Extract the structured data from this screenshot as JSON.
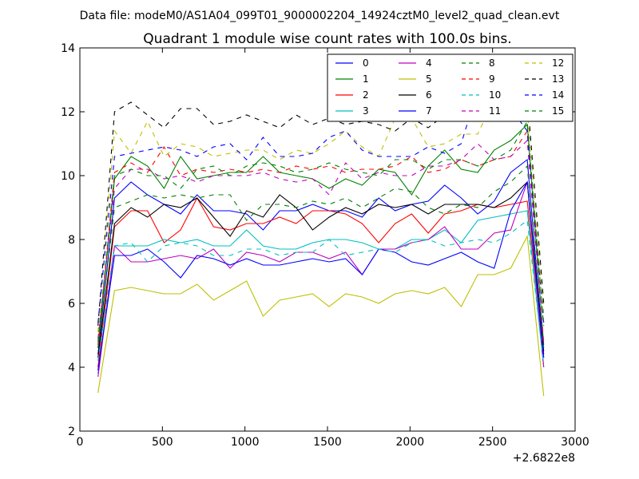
{
  "figure": {
    "suptitle": "Data file: modeM0/AS1A04_099T01_9000002204_14924cztM0_level2_quad_clean.evt"
  },
  "chart_data": {
    "type": "line",
    "title": "Quadrant 1 module wise count rates with 100.0s bins.",
    "xlabel": "",
    "ylabel": "",
    "x_offset_label": "+2.6822e8",
    "xlim": [
      0,
      3000
    ],
    "ylim": [
      2,
      14
    ],
    "xticks": [
      0,
      500,
      1000,
      1500,
      2000,
      2500,
      3000
    ],
    "yticks": [
      2,
      4,
      6,
      8,
      10,
      12,
      14
    ],
    "grid": false,
    "legend_placement": "top-right",
    "legend_columns": 4,
    "x": [
      110,
      210,
      310,
      410,
      510,
      610,
      710,
      810,
      910,
      1010,
      1110,
      1210,
      1310,
      1410,
      1510,
      1610,
      1710,
      1810,
      1910,
      2010,
      2110,
      2210,
      2310,
      2410,
      2510,
      2610,
      2710,
      2810
    ],
    "series": [
      {
        "name": "0",
        "color": "#0000ff",
        "dash": "solid",
        "values": [
          4.4,
          9.3,
          9.8,
          9.4,
          9.1,
          8.8,
          9.4,
          8.9,
          8.9,
          8.8,
          8.3,
          8.9,
          8.9,
          9.1,
          8.9,
          8.9,
          8.7,
          9.3,
          8.9,
          9.1,
          9.2,
          9.7,
          9.3,
          8.8,
          9.2,
          10.1,
          10.5,
          4.4
        ]
      },
      {
        "name": "1",
        "color": "#008000",
        "dash": "solid",
        "values": [
          4.6,
          9.9,
          10.6,
          10.3,
          9.6,
          10.6,
          9.9,
          10.0,
          10.1,
          10.1,
          10.6,
          10.1,
          10.0,
          9.9,
          9.6,
          9.9,
          9.7,
          10.2,
          10.1,
          9.4,
          10.3,
          10.8,
          10.2,
          10.1,
          10.8,
          11.1,
          11.6,
          4.7
        ]
      },
      {
        "name": "2",
        "color": "#ff0000",
        "dash": "solid",
        "values": [
          4.0,
          8.4,
          8.9,
          8.9,
          7.9,
          8.3,
          9.3,
          8.4,
          8.3,
          8.5,
          8.5,
          8.7,
          8.5,
          8.9,
          8.9,
          8.8,
          8.5,
          7.9,
          8.5,
          8.8,
          8.2,
          8.8,
          8.9,
          9.1,
          9.0,
          9.1,
          9.2,
          4.3
        ]
      },
      {
        "name": "3",
        "color": "#00bfbf",
        "dash": "solid",
        "values": [
          3.8,
          7.8,
          7.8,
          7.8,
          8.0,
          7.9,
          8.0,
          7.8,
          7.8,
          8.3,
          7.8,
          7.7,
          7.7,
          7.9,
          8.0,
          8.0,
          7.9,
          7.7,
          7.7,
          8.0,
          8.0,
          8.3,
          7.9,
          8.6,
          8.7,
          8.8,
          8.9,
          4.0
        ]
      },
      {
        "name": "4",
        "color": "#bf00bf",
        "dash": "solid",
        "values": [
          3.7,
          7.8,
          7.3,
          7.3,
          7.4,
          7.5,
          7.4,
          7.7,
          7.1,
          7.6,
          7.5,
          7.3,
          7.6,
          7.6,
          7.4,
          7.6,
          6.9,
          7.7,
          7.7,
          7.9,
          8.0,
          8.4,
          7.7,
          7.7,
          8.2,
          8.3,
          9.8,
          4.0
        ]
      },
      {
        "name": "5",
        "color": "#bfbf00",
        "dash": "solid",
        "values": [
          3.2,
          6.4,
          6.5,
          6.4,
          6.3,
          6.3,
          6.6,
          6.1,
          6.4,
          6.7,
          5.6,
          6.1,
          6.2,
          6.3,
          5.9,
          6.3,
          6.2,
          6.0,
          6.3,
          6.4,
          6.3,
          6.5,
          5.9,
          6.9,
          6.9,
          7.1,
          8.1,
          3.1
        ]
      },
      {
        "name": "6",
        "color": "#000000",
        "dash": "solid",
        "values": [
          4.3,
          8.5,
          9.0,
          8.7,
          9.1,
          9.0,
          9.3,
          8.7,
          8.1,
          8.9,
          8.7,
          9.4,
          9.0,
          8.3,
          8.7,
          9.0,
          8.8,
          9.1,
          9.0,
          9.1,
          8.8,
          9.1,
          9.1,
          9.1,
          9.0,
          9.3,
          9.8,
          4.5
        ]
      },
      {
        "name": "7",
        "color": "#0000ff",
        "dash": "solid",
        "values": [
          3.9,
          7.5,
          7.5,
          7.7,
          7.3,
          6.8,
          7.5,
          7.4,
          7.2,
          7.4,
          7.2,
          7.2,
          7.3,
          7.4,
          7.3,
          7.4,
          6.9,
          7.7,
          7.6,
          7.3,
          7.2,
          7.4,
          7.6,
          7.3,
          7.1,
          8.9,
          9.8,
          4.3
        ]
      },
      {
        "name": "8",
        "color": "#008000",
        "dash": "dashed",
        "values": [
          4.6,
          9.0,
          9.2,
          9.4,
          9.3,
          9.4,
          9.3,
          9.4,
          9.4,
          8.6,
          9.1,
          9.1,
          9.0,
          9.2,
          9.1,
          9.3,
          9.0,
          9.3,
          9.6,
          9.5,
          9.0,
          8.8,
          9.1,
          9.0,
          9.5,
          9.8,
          10.3,
          4.6
        ]
      },
      {
        "name": "9",
        "color": "#ff0000",
        "dash": "dashed",
        "values": [
          4.7,
          10.1,
          10.4,
          10.1,
          10.9,
          10.0,
          10.2,
          10.1,
          10.2,
          10.1,
          10.2,
          10.1,
          10.3,
          10.2,
          10.3,
          10.1,
          10.2,
          10.2,
          10.3,
          10.6,
          10.1,
          10.2,
          10.5,
          10.3,
          10.5,
          10.6,
          11.4,
          4.7
        ]
      },
      {
        "name": "10",
        "color": "#00bfbf",
        "dash": "dashed",
        "values": [
          4.2,
          7.8,
          7.9,
          7.3,
          7.8,
          7.9,
          7.8,
          7.5,
          7.5,
          7.7,
          7.7,
          7.5,
          7.6,
          7.6,
          8.0,
          7.5,
          7.6,
          7.7,
          7.6,
          7.9,
          8.0,
          7.8,
          7.9,
          8.0,
          7.9,
          8.2,
          8.6,
          4.1
        ]
      },
      {
        "name": "11",
        "color": "#bf00bf",
        "dash": "dashed",
        "values": [
          4.9,
          9.6,
          10.2,
          10.2,
          9.9,
          10.0,
          9.8,
          10.0,
          10.0,
          10.0,
          10.1,
          9.9,
          9.8,
          9.9,
          9.4,
          10.4,
          9.9,
          10.1,
          10.0,
          10.0,
          10.3,
          10.3,
          10.5,
          11.0,
          10.5,
          10.6,
          11.1,
          4.8
        ]
      },
      {
        "name": "12",
        "color": "#bfbf00",
        "dash": "dashed",
        "values": [
          5.1,
          11.4,
          10.7,
          11.7,
          10.6,
          11.0,
          10.9,
          10.6,
          10.7,
          10.8,
          10.8,
          10.5,
          10.8,
          10.7,
          11.0,
          11.4,
          10.9,
          10.6,
          11.8,
          11.8,
          10.9,
          11.0,
          11.3,
          11.3,
          12.4,
          12.4,
          12.1,
          5.7
        ]
      },
      {
        "name": "13",
        "color": "#000000",
        "dash": "dashed",
        "values": [
          5.3,
          12.0,
          12.3,
          11.9,
          11.5,
          12.1,
          12.1,
          11.6,
          11.7,
          11.9,
          11.7,
          11.5,
          11.9,
          11.6,
          11.8,
          11.6,
          11.7,
          11.6,
          11.4,
          11.8,
          11.5,
          11.9,
          11.8,
          12.3,
          12.5,
          12.5,
          12.5,
          6.0
        ]
      },
      {
        "name": "14",
        "color": "#0000ff",
        "dash": "dashed",
        "values": [
          5.4,
          10.6,
          10.7,
          10.8,
          10.9,
          10.8,
          10.6,
          10.9,
          11.0,
          10.5,
          11.2,
          10.6,
          10.6,
          10.7,
          11.2,
          11.4,
          10.8,
          10.6,
          10.6,
          10.6,
          10.9,
          10.7,
          11.0,
          12.7,
          12.6,
          12.1,
          11.4,
          5.4
        ]
      },
      {
        "name": "15",
        "color": "#008000",
        "dash": "dashed",
        "values": [
          4.8,
          10.0,
          10.2,
          10.0,
          10.0,
          9.6,
          10.2,
          10.3,
          10.0,
          10.3,
          10.4,
          10.3,
          10.1,
          10.2,
          10.4,
          10.2,
          10.1,
          10.0,
          10.5,
          10.5,
          10.2,
          10.5,
          10.5,
          10.3,
          10.5,
          10.8,
          11.7,
          5.3
        ]
      }
    ]
  }
}
